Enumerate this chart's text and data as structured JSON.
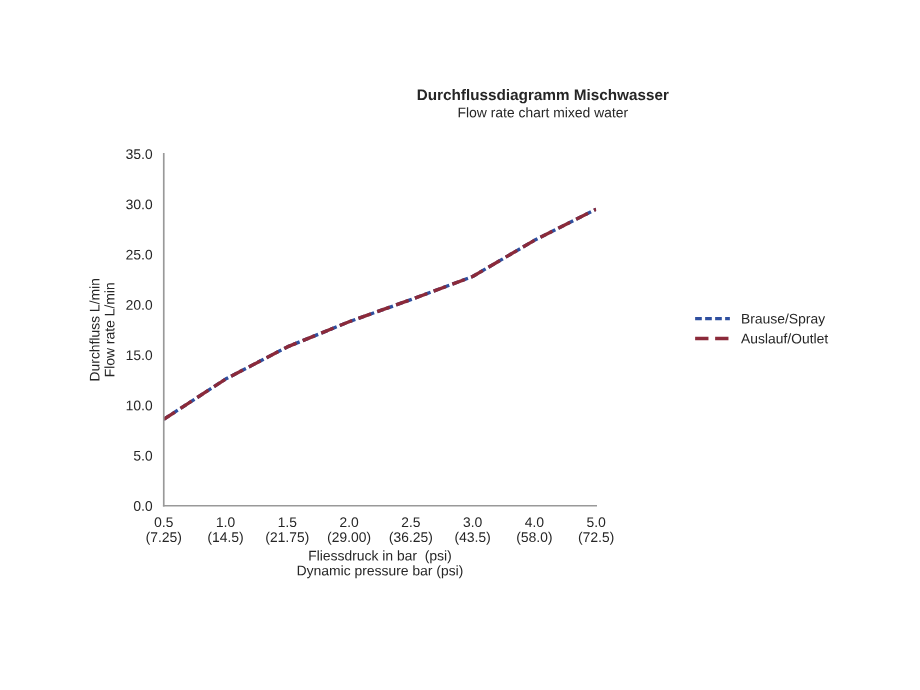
{
  "chart_data": {
    "type": "line",
    "title": "Durchflussdiagramm Mischwasser",
    "subtitle": "Flow rate chart mixed water",
    "xlabel": "Fliessdruck in bar  (psi)\nDynamic pressure bar (psi)",
    "ylabel": "Durchfluss L/min\nFlow rate L/min",
    "categories": [
      "0.5\n(7.25)",
      "1.0\n(14.5)",
      "1.5\n(21.75)",
      "2.0\n(29.00)",
      "2.5\n(36.25)",
      "3.0\n(43.5)",
      "4.0\n(58.0)",
      "5.0\n(72.5)"
    ],
    "series": [
      {
        "name": "Brause/Spray",
        "color": "#2f4f9f",
        "line_style": "dotted",
        "values": [
          8.6,
          12.6,
          15.8,
          18.3,
          20.5,
          22.8,
          26.4,
          29.5
        ]
      },
      {
        "name": "Auslauf/Outlet",
        "color": "#8b2a3a",
        "line_style": "dashed",
        "values": [
          8.6,
          12.6,
          15.8,
          18.3,
          20.5,
          22.8,
          26.4,
          29.5
        ]
      }
    ],
    "ylim": [
      0,
      35
    ],
    "yticks": [
      {
        "value": 0,
        "label": "0.0"
      },
      {
        "value": 5,
        "label": "5.0"
      },
      {
        "value": 10,
        "label": "10.0"
      },
      {
        "value": 15,
        "label": "15.0"
      },
      {
        "value": 20,
        "label": "20.0"
      },
      {
        "value": 25,
        "label": "25.0"
      },
      {
        "value": 30,
        "label": "30.0"
      },
      {
        "value": 35,
        "label": "35.0"
      }
    ],
    "legend": "right",
    "grid": false
  }
}
